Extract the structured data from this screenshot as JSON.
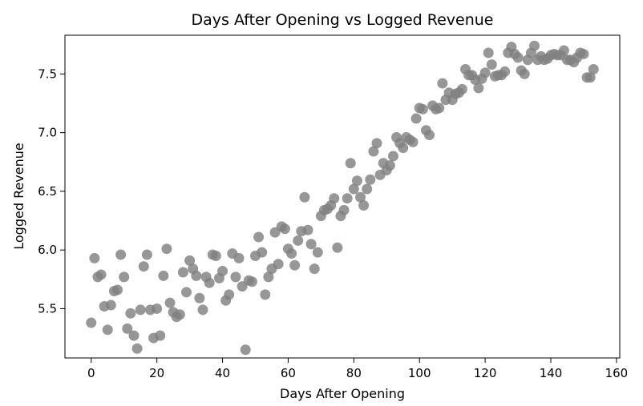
{
  "chart_data": {
    "type": "scatter",
    "title": "Days After Opening vs Logged Revenue",
    "xlabel": "Days After Opening",
    "ylabel": "Logged Revenue",
    "xlim": [
      -8,
      161
    ],
    "ylim": [
      5.08,
      7.83
    ],
    "grid": false,
    "point_color": "#808080",
    "x_ticks": [
      {
        "value": 0,
        "label": "0"
      },
      {
        "value": 20,
        "label": "20"
      },
      {
        "value": 40,
        "label": "40"
      },
      {
        "value": 60,
        "label": "60"
      },
      {
        "value": 80,
        "label": "80"
      },
      {
        "value": 100,
        "label": "100"
      },
      {
        "value": 120,
        "label": "120"
      },
      {
        "value": 140,
        "label": "140"
      },
      {
        "value": 160,
        "label": "160"
      }
    ],
    "y_ticks": [
      {
        "value": 5.5,
        "label": "5.5"
      },
      {
        "value": 6.0,
        "label": "6.0"
      },
      {
        "value": 6.5,
        "label": "6.5"
      },
      {
        "value": 7.0,
        "label": "7.0"
      },
      {
        "value": 7.5,
        "label": "7.5"
      }
    ],
    "series": [
      {
        "points": [
          [
            0,
            5.38
          ],
          [
            1,
            5.93
          ],
          [
            2,
            5.77
          ],
          [
            3,
            5.79
          ],
          [
            4,
            5.52
          ],
          [
            5,
            5.32
          ],
          [
            6,
            5.53
          ],
          [
            7,
            5.65
          ],
          [
            8,
            5.66
          ],
          [
            9,
            5.96
          ],
          [
            10,
            5.77
          ],
          [
            11,
            5.33
          ],
          [
            12,
            5.46
          ],
          [
            13,
            5.27
          ],
          [
            14,
            5.16
          ],
          [
            15,
            5.49
          ],
          [
            16,
            5.86
          ],
          [
            17,
            5.96
          ],
          [
            18,
            5.49
          ],
          [
            19,
            5.25
          ],
          [
            20,
            5.5
          ],
          [
            21,
            5.27
          ],
          [
            22,
            5.78
          ],
          [
            23,
            6.01
          ],
          [
            24,
            5.55
          ],
          [
            25,
            5.47
          ],
          [
            26,
            5.43
          ],
          [
            27,
            5.45
          ],
          [
            28,
            5.81
          ],
          [
            29,
            5.64
          ],
          [
            30,
            5.91
          ],
          [
            31,
            5.84
          ],
          [
            32,
            5.78
          ],
          [
            33,
            5.59
          ],
          [
            34,
            5.49
          ],
          [
            35,
            5.77
          ],
          [
            36,
            5.72
          ],
          [
            37,
            5.96
          ],
          [
            38,
            5.95
          ],
          [
            39,
            5.76
          ],
          [
            40,
            5.82
          ],
          [
            41,
            5.57
          ],
          [
            42,
            5.62
          ],
          [
            43,
            5.97
          ],
          [
            44,
            5.77
          ],
          [
            45,
            5.93
          ],
          [
            46,
            5.69
          ],
          [
            47,
            5.15
          ],
          [
            48,
            5.74
          ],
          [
            49,
            5.73
          ],
          [
            50,
            5.95
          ],
          [
            51,
            6.11
          ],
          [
            52,
            5.98
          ],
          [
            53,
            5.62
          ],
          [
            54,
            5.77
          ],
          [
            55,
            5.84
          ],
          [
            56,
            6.15
          ],
          [
            57,
            5.88
          ],
          [
            58,
            6.2
          ],
          [
            59,
            6.18
          ],
          [
            60,
            6.01
          ],
          [
            61,
            5.97
          ],
          [
            62,
            5.87
          ],
          [
            63,
            6.08
          ],
          [
            64,
            6.16
          ],
          [
            65,
            6.45
          ],
          [
            66,
            6.17
          ],
          [
            67,
            6.05
          ],
          [
            68,
            5.84
          ],
          [
            69,
            5.98
          ],
          [
            70,
            6.29
          ],
          [
            71,
            6.34
          ],
          [
            72,
            6.35
          ],
          [
            73,
            6.38
          ],
          [
            74,
            6.44
          ],
          [
            75,
            6.02
          ],
          [
            76,
            6.29
          ],
          [
            77,
            6.34
          ],
          [
            78,
            6.44
          ],
          [
            79,
            6.74
          ],
          [
            80,
            6.52
          ],
          [
            81,
            6.59
          ],
          [
            82,
            6.45
          ],
          [
            83,
            6.38
          ],
          [
            84,
            6.52
          ],
          [
            85,
            6.6
          ],
          [
            86,
            6.84
          ],
          [
            87,
            6.91
          ],
          [
            88,
            6.64
          ],
          [
            89,
            6.74
          ],
          [
            90,
            6.68
          ],
          [
            91,
            6.72
          ],
          [
            92,
            6.8
          ],
          [
            93,
            6.96
          ],
          [
            94,
            6.91
          ],
          [
            95,
            6.87
          ],
          [
            96,
            6.96
          ],
          [
            97,
            6.94
          ],
          [
            98,
            6.92
          ],
          [
            99,
            7.12
          ],
          [
            100,
            7.21
          ],
          [
            101,
            7.2
          ],
          [
            102,
            7.02
          ],
          [
            103,
            6.98
          ],
          [
            104,
            7.23
          ],
          [
            105,
            7.2
          ],
          [
            106,
            7.21
          ],
          [
            107,
            7.42
          ],
          [
            108,
            7.28
          ],
          [
            109,
            7.34
          ],
          [
            110,
            7.28
          ],
          [
            111,
            7.33
          ],
          [
            112,
            7.34
          ],
          [
            113,
            7.37
          ],
          [
            114,
            7.54
          ],
          [
            115,
            7.49
          ],
          [
            116,
            7.49
          ],
          [
            117,
            7.45
          ],
          [
            118,
            7.38
          ],
          [
            119,
            7.46
          ],
          [
            120,
            7.51
          ],
          [
            121,
            7.68
          ],
          [
            122,
            7.58
          ],
          [
            123,
            7.48
          ],
          [
            124,
            7.49
          ],
          [
            125,
            7.49
          ],
          [
            126,
            7.52
          ],
          [
            127,
            7.68
          ],
          [
            128,
            7.73
          ],
          [
            129,
            7.67
          ],
          [
            130,
            7.64
          ],
          [
            131,
            7.53
          ],
          [
            132,
            7.5
          ],
          [
            133,
            7.62
          ],
          [
            134,
            7.68
          ],
          [
            135,
            7.74
          ],
          [
            136,
            7.62
          ],
          [
            137,
            7.65
          ],
          [
            138,
            7.62
          ],
          [
            139,
            7.63
          ],
          [
            140,
            7.66
          ],
          [
            141,
            7.67
          ],
          [
            142,
            7.66
          ],
          [
            143,
            7.66
          ],
          [
            144,
            7.7
          ],
          [
            145,
            7.62
          ],
          [
            146,
            7.62
          ],
          [
            147,
            7.6
          ],
          [
            148,
            7.64
          ],
          [
            149,
            7.68
          ],
          [
            150,
            7.67
          ],
          [
            151,
            7.47
          ],
          [
            152,
            7.47
          ],
          [
            153,
            7.54
          ]
        ]
      }
    ]
  }
}
